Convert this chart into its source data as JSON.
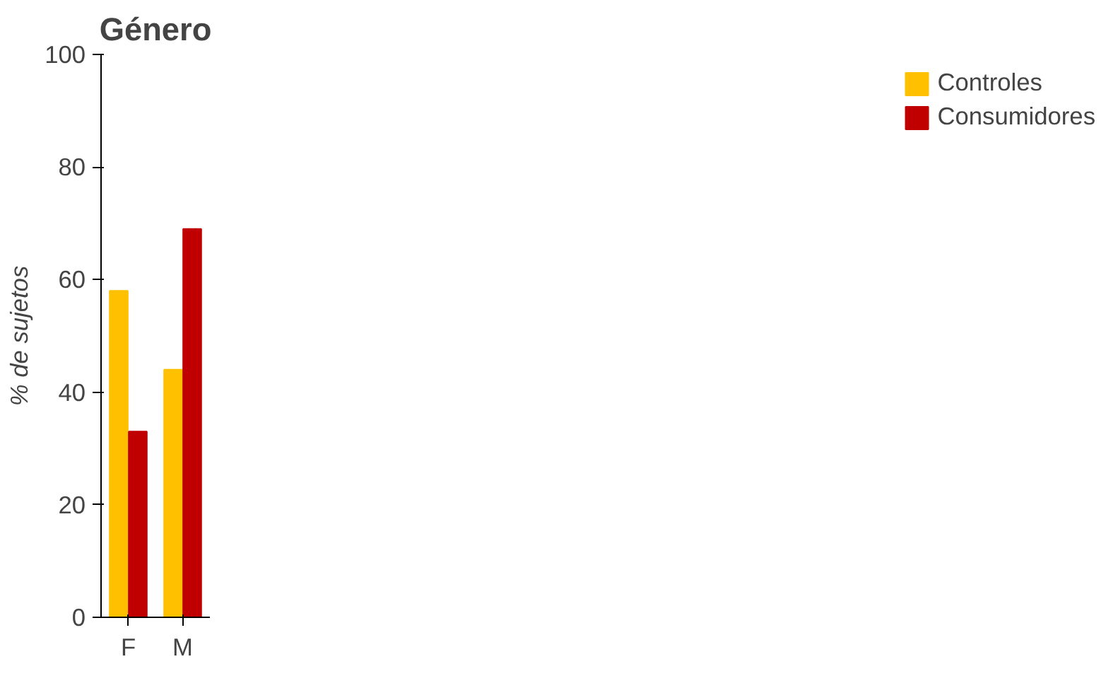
{
  "chart_data": {
    "type": "bar",
    "title": "Género",
    "ylabel": "% de sujetos",
    "categories": [
      "F",
      "M"
    ],
    "series": [
      {
        "name": "Controles",
        "color": "#ffc000",
        "values": [
          58,
          44
        ]
      },
      {
        "name": "Consumidores",
        "color": "#c00000",
        "values": [
          33,
          69
        ]
      }
    ],
    "ylim": [
      0,
      100
    ],
    "yticks": [
      0,
      20,
      40,
      60,
      80,
      100
    ],
    "grid": false,
    "legend": "right"
  }
}
